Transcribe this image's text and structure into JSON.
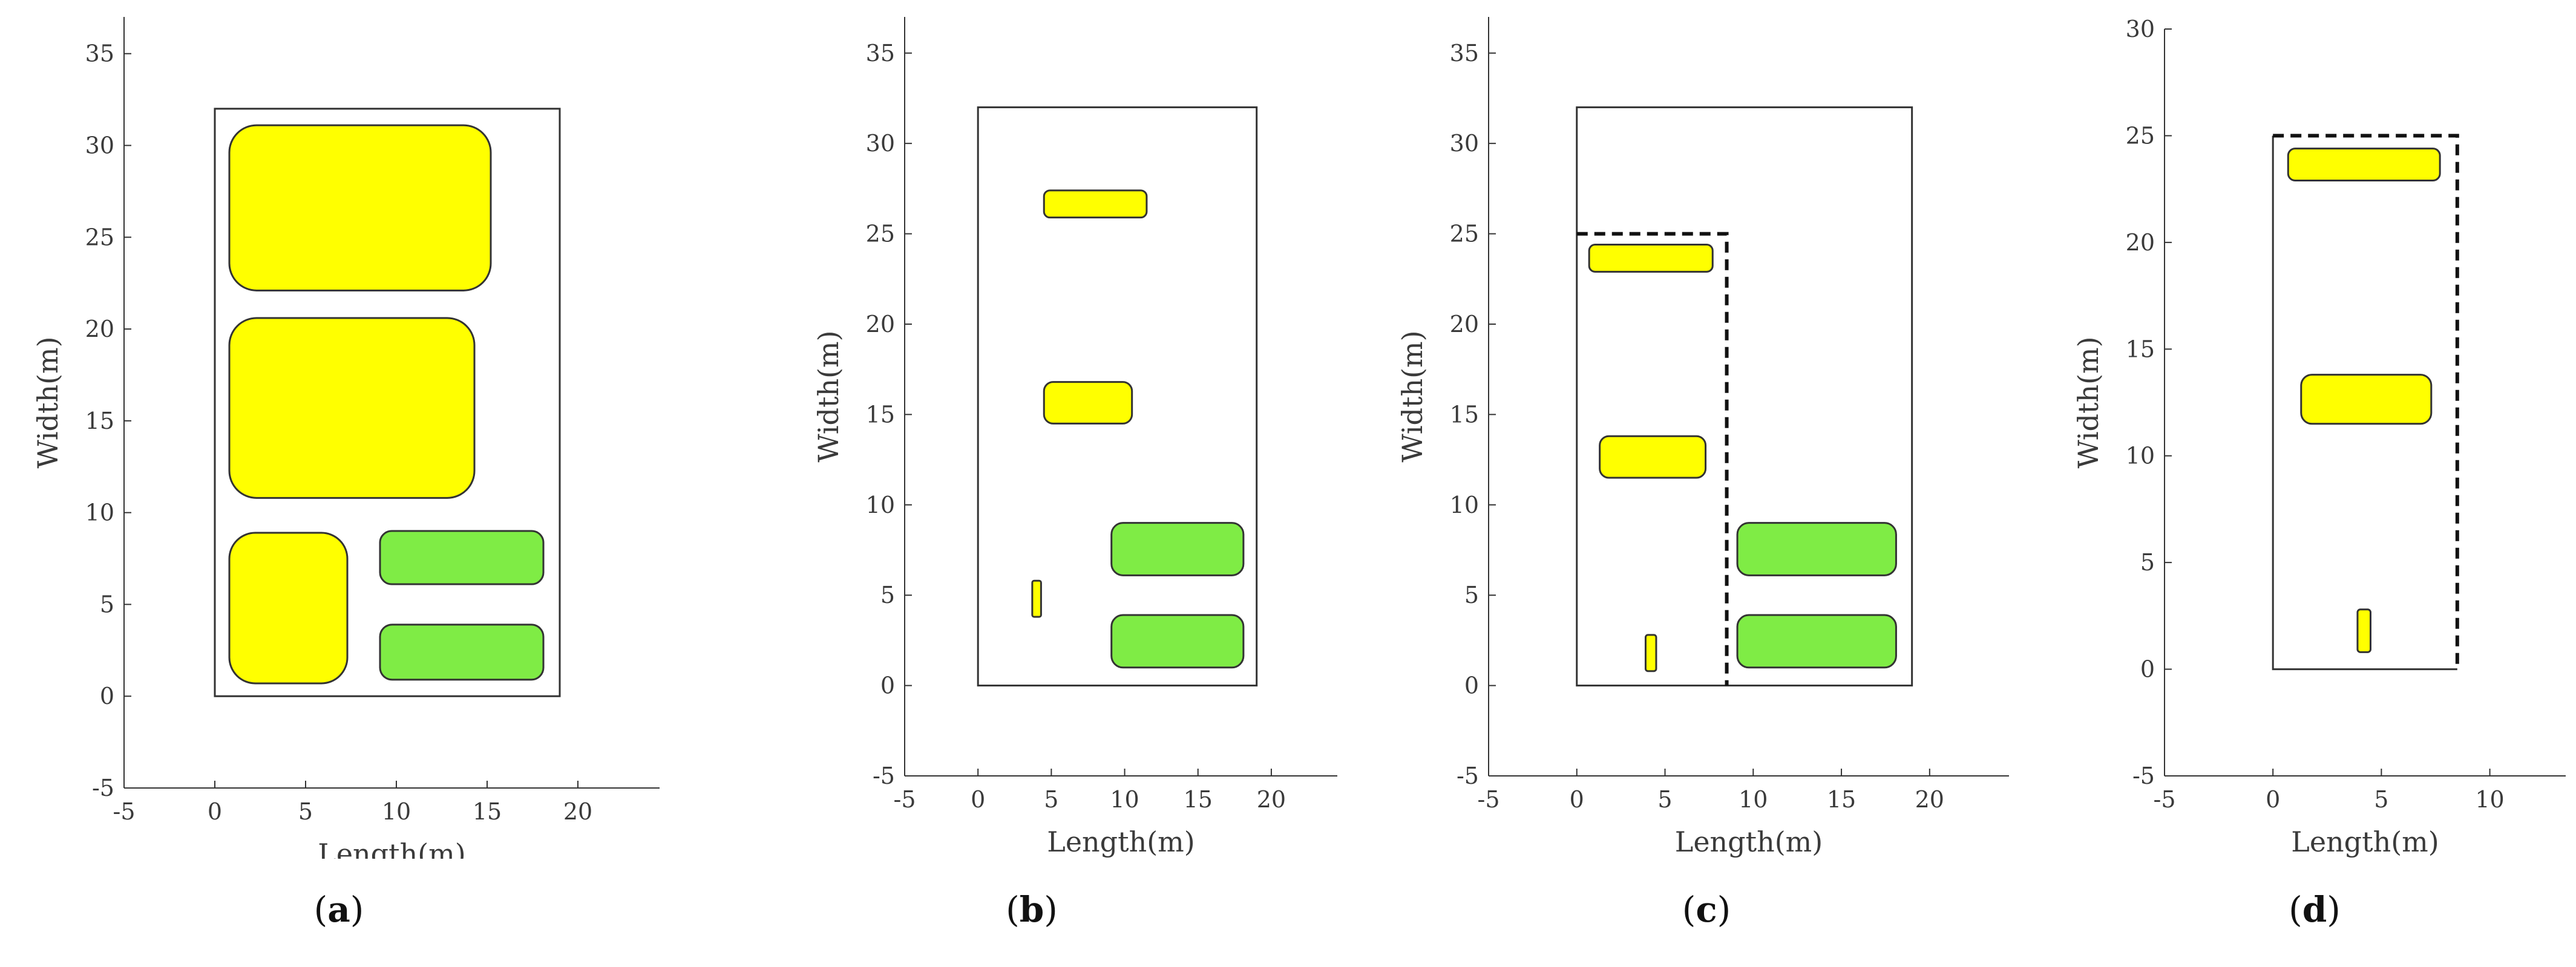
{
  "colors": {
    "yellow": "#ffff00",
    "green": "#7fec45",
    "edge": "#333333",
    "axis": "#333333",
    "text": "#3a3a3a"
  },
  "chart_data": [
    {
      "type": "layout",
      "panel": "a",
      "xlabel": "Length(m)",
      "ylabel": "Width(m)",
      "xlim": [
        -5,
        24.5
      ],
      "ylim": [
        -5,
        37
      ],
      "xticks": [
        -5,
        0,
        5,
        10,
        15,
        20
      ],
      "yticks": [
        -5,
        0,
        5,
        10,
        15,
        20,
        25,
        30,
        35
      ],
      "boundary": {
        "x": [
          0,
          19
        ],
        "y": [
          0,
          32
        ],
        "style": "solid"
      },
      "blocks": [
        {
          "x": 0.8,
          "y": 22.1,
          "w": 14.4,
          "h": 9.0,
          "color": "yellow"
        },
        {
          "x": 0.8,
          "y": 10.8,
          "w": 13.5,
          "h": 9.8,
          "color": "yellow"
        },
        {
          "x": 0.8,
          "y": 0.7,
          "w": 6.5,
          "h": 8.2,
          "color": "yellow"
        },
        {
          "x": 9.1,
          "y": 6.1,
          "w": 9.0,
          "h": 2.9,
          "color": "green"
        },
        {
          "x": 9.1,
          "y": 0.9,
          "w": 9.0,
          "h": 3.0,
          "color": "green"
        }
      ]
    },
    {
      "type": "layout",
      "panel": "b",
      "xlabel": "Length(m)",
      "ylabel": "Width(m)",
      "xlim": [
        -5,
        24.5
      ],
      "ylim": [
        -5,
        37
      ],
      "xticks": [
        -5,
        0,
        5,
        10,
        15,
        20
      ],
      "yticks": [
        -5,
        0,
        5,
        10,
        15,
        20,
        25,
        30,
        35
      ],
      "boundary": {
        "x": [
          0,
          19
        ],
        "y": [
          0,
          32
        ],
        "style": "solid"
      },
      "blocks": [
        {
          "x": 4.5,
          "y": 25.9,
          "w": 7.0,
          "h": 1.5,
          "color": "yellow"
        },
        {
          "x": 4.5,
          "y": 14.5,
          "w": 6.0,
          "h": 2.3,
          "color": "yellow"
        },
        {
          "x": 3.7,
          "y": 3.8,
          "w": 0.6,
          "h": 2.0,
          "color": "yellow"
        },
        {
          "x": 9.1,
          "y": 6.1,
          "w": 9.0,
          "h": 2.9,
          "color": "green"
        },
        {
          "x": 9.1,
          "y": 1.0,
          "w": 9.0,
          "h": 2.9,
          "color": "green"
        }
      ]
    },
    {
      "type": "layout",
      "panel": "c",
      "xlabel": "Length(m)",
      "ylabel": "Width(m)",
      "xlim": [
        -5,
        24.5
      ],
      "ylim": [
        -5,
        37
      ],
      "xticks": [
        -5,
        0,
        5,
        10,
        15,
        20
      ],
      "yticks": [
        -5,
        0,
        5,
        10,
        15,
        20,
        25,
        30,
        35
      ],
      "boundary": {
        "x": [
          0,
          19
        ],
        "y": [
          0,
          32
        ],
        "style": "solid"
      },
      "dashed_region": {
        "x": [
          0,
          8.5
        ],
        "y": [
          0,
          25
        ]
      },
      "blocks": [
        {
          "x": 0.7,
          "y": 22.9,
          "w": 7.0,
          "h": 1.5,
          "color": "yellow"
        },
        {
          "x": 1.3,
          "y": 11.5,
          "w": 6.0,
          "h": 2.3,
          "color": "yellow"
        },
        {
          "x": 3.9,
          "y": 0.8,
          "w": 0.6,
          "h": 2.0,
          "color": "yellow"
        },
        {
          "x": 9.1,
          "y": 6.1,
          "w": 9.0,
          "h": 2.9,
          "color": "green"
        },
        {
          "x": 9.1,
          "y": 1.0,
          "w": 9.0,
          "h": 2.9,
          "color": "green"
        }
      ]
    },
    {
      "type": "layout",
      "panel": "d",
      "xlabel": "Length(m)",
      "ylabel": "Width(m)",
      "xlim": [
        -5,
        13.5
      ],
      "ylim": [
        -5,
        30
      ],
      "xticks": [
        -5,
        0,
        5,
        10
      ],
      "yticks": [
        -5,
        0,
        5,
        10,
        15,
        20,
        25,
        30
      ],
      "boundary": {
        "x": [
          0,
          8.5
        ],
        "y": [
          0,
          25
        ],
        "style": "mixed"
      },
      "blocks": [
        {
          "x": 0.7,
          "y": 22.9,
          "w": 7.0,
          "h": 1.5,
          "color": "yellow"
        },
        {
          "x": 1.3,
          "y": 11.5,
          "w": 6.0,
          "h": 2.3,
          "color": "yellow"
        },
        {
          "x": 3.9,
          "y": 0.8,
          "w": 0.6,
          "h": 2.0,
          "color": "yellow"
        }
      ]
    }
  ],
  "captions": [
    {
      "open": "(",
      "letter": "a",
      "close": ")"
    },
    {
      "open": "(",
      "letter": "b",
      "close": ")"
    },
    {
      "open": "(",
      "letter": "c",
      "close": ")"
    },
    {
      "open": "(",
      "letter": "d",
      "close": ")"
    }
  ]
}
